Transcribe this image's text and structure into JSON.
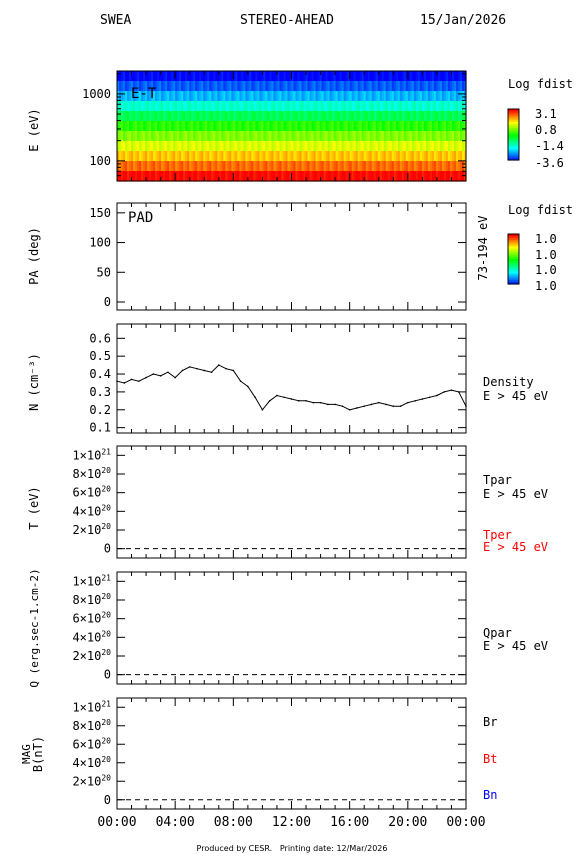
{
  "header": {
    "instrument": "SWEA",
    "spacecraft": "STEREO-AHEAD",
    "date": "15/Jan/2026"
  },
  "footer": {
    "produced_by": "Produced by CESR.",
    "printing_date": "Printing date: 12/Mar/2026"
  },
  "x_axis": {
    "ticks": [
      "00:00",
      "04:00",
      "08:00",
      "12:00",
      "16:00",
      "20:00",
      "00:00"
    ],
    "range_hours": [
      0,
      24
    ]
  },
  "colors": {
    "black": "#000000",
    "tper_red": "#ff0000",
    "bt_red": "#ff0000",
    "bn_blue": "#0000ff"
  },
  "chart_data": [
    {
      "type": "heatmap",
      "panel_label": "E-T",
      "ylabel": "E (eV)",
      "yscale": "log",
      "yticks": [
        "1000",
        "100"
      ],
      "ylim": [
        50,
        2200
      ],
      "colorbar": {
        "title": "Log fdist",
        "ticks": [
          "3.1",
          "0.8",
          "-1.4",
          "-3.6"
        ]
      },
      "energy_bands_eV": [
        2000,
        1400,
        1000,
        700,
        500,
        350,
        250,
        180,
        120,
        85,
        60
      ],
      "band_log_fdist": [
        -3.6,
        -3.0,
        -2.4,
        -1.6,
        -0.8,
        0.0,
        0.6,
        1.2,
        1.8,
        2.4,
        3.1
      ]
    },
    {
      "type": "heatmap",
      "panel_label": "PAD",
      "ylabel": "PA (deg)",
      "yticks": [
        "0",
        "50",
        "100",
        "150"
      ],
      "ylim": [
        0,
        180
      ],
      "right_label": "73-194 eV",
      "colorbar": {
        "title": "Log fdist",
        "ticks": [
          "1.0",
          "1.0",
          "1.0",
          "1.0"
        ]
      }
    },
    {
      "type": "line",
      "ylabel": "N (cm⁻³)",
      "yticks": [
        "0.6",
        "0.5",
        "0.4",
        "0.3",
        "0.2",
        "0.1"
      ],
      "ylim": [
        0.07,
        0.68
      ],
      "series": [
        {
          "name": "Density",
          "label": "E > 45 eV",
          "x_hours": [
            0.0,
            0.5,
            1.0,
            1.5,
            2.0,
            2.5,
            3.0,
            3.5,
            4.0,
            4.5,
            5.0,
            5.5,
            6.0,
            6.5,
            7.0,
            7.5,
            8.0,
            8.5,
            9.0,
            9.5,
            10.0,
            10.5,
            11.0,
            11.5,
            12.0,
            12.5,
            13.0,
            13.5,
            14.0,
            14.5,
            15.0,
            15.5,
            16.0,
            16.5,
            17.0,
            17.5,
            18.0,
            18.5,
            19.0,
            19.5,
            20.0,
            20.5,
            21.0,
            21.5,
            22.0,
            22.5,
            23.0,
            23.5,
            24.0
          ],
          "values": [
            0.36,
            0.35,
            0.37,
            0.36,
            0.38,
            0.4,
            0.39,
            0.41,
            0.38,
            0.42,
            0.44,
            0.43,
            0.42,
            0.41,
            0.45,
            0.43,
            0.42,
            0.36,
            0.33,
            0.27,
            0.2,
            0.25,
            0.28,
            0.27,
            0.26,
            0.25,
            0.25,
            0.24,
            0.24,
            0.23,
            0.23,
            0.22,
            0.2,
            0.21,
            0.22,
            0.23,
            0.24,
            0.23,
            0.22,
            0.22,
            0.24,
            0.25,
            0.26,
            0.27,
            0.28,
            0.3,
            0.31,
            0.3,
            0.22
          ]
        }
      ]
    },
    {
      "type": "line",
      "ylabel": "T (eV)",
      "yticks": [
        "1×10²¹",
        "8×10²⁰",
        "6×10²⁰",
        "4×10²⁰",
        "2×10²⁰",
        "0"
      ],
      "ytick_values": [
        1e+21,
        8e+20,
        6e+20,
        4e+20,
        2e+20,
        0
      ],
      "ylim": [
        -1e+20,
        1.1e+21
      ],
      "series": [
        {
          "name": "Tpar",
          "label": "E > 45 eV"
        },
        {
          "name": "Tper",
          "label": "E > 45 eV"
        }
      ],
      "zero_line": "dashed"
    },
    {
      "type": "line",
      "ylabel": "Q (erg.sec⁻¹.cm⁻²)",
      "yticks": [
        "1×10²¹",
        "8×10²⁰",
        "6×10²⁰",
        "4×10²⁰",
        "2×10²⁰",
        "0"
      ],
      "ytick_values": [
        1e+21,
        8e+20,
        6e+20,
        4e+20,
        2e+20,
        0
      ],
      "ylim": [
        -1e+20,
        1.1e+21
      ],
      "series": [
        {
          "name": "Qpar",
          "label": "E > 45 eV"
        }
      ],
      "zero_line": "dashed"
    },
    {
      "type": "line",
      "ylabel": "MAG B(nT)",
      "yticks": [
        "1×10²¹",
        "8×10²⁰",
        "6×10²⁰",
        "4×10²⁰",
        "2×10²⁰",
        "0"
      ],
      "ytick_values": [
        1e+21,
        8e+20,
        6e+20,
        4e+20,
        2e+20,
        0
      ],
      "ylim": [
        -1e+20,
        1.1e+21
      ],
      "series": [
        {
          "name": "Br"
        },
        {
          "name": "Bt"
        },
        {
          "name": "Bn"
        }
      ],
      "zero_line": "dashed"
    }
  ]
}
